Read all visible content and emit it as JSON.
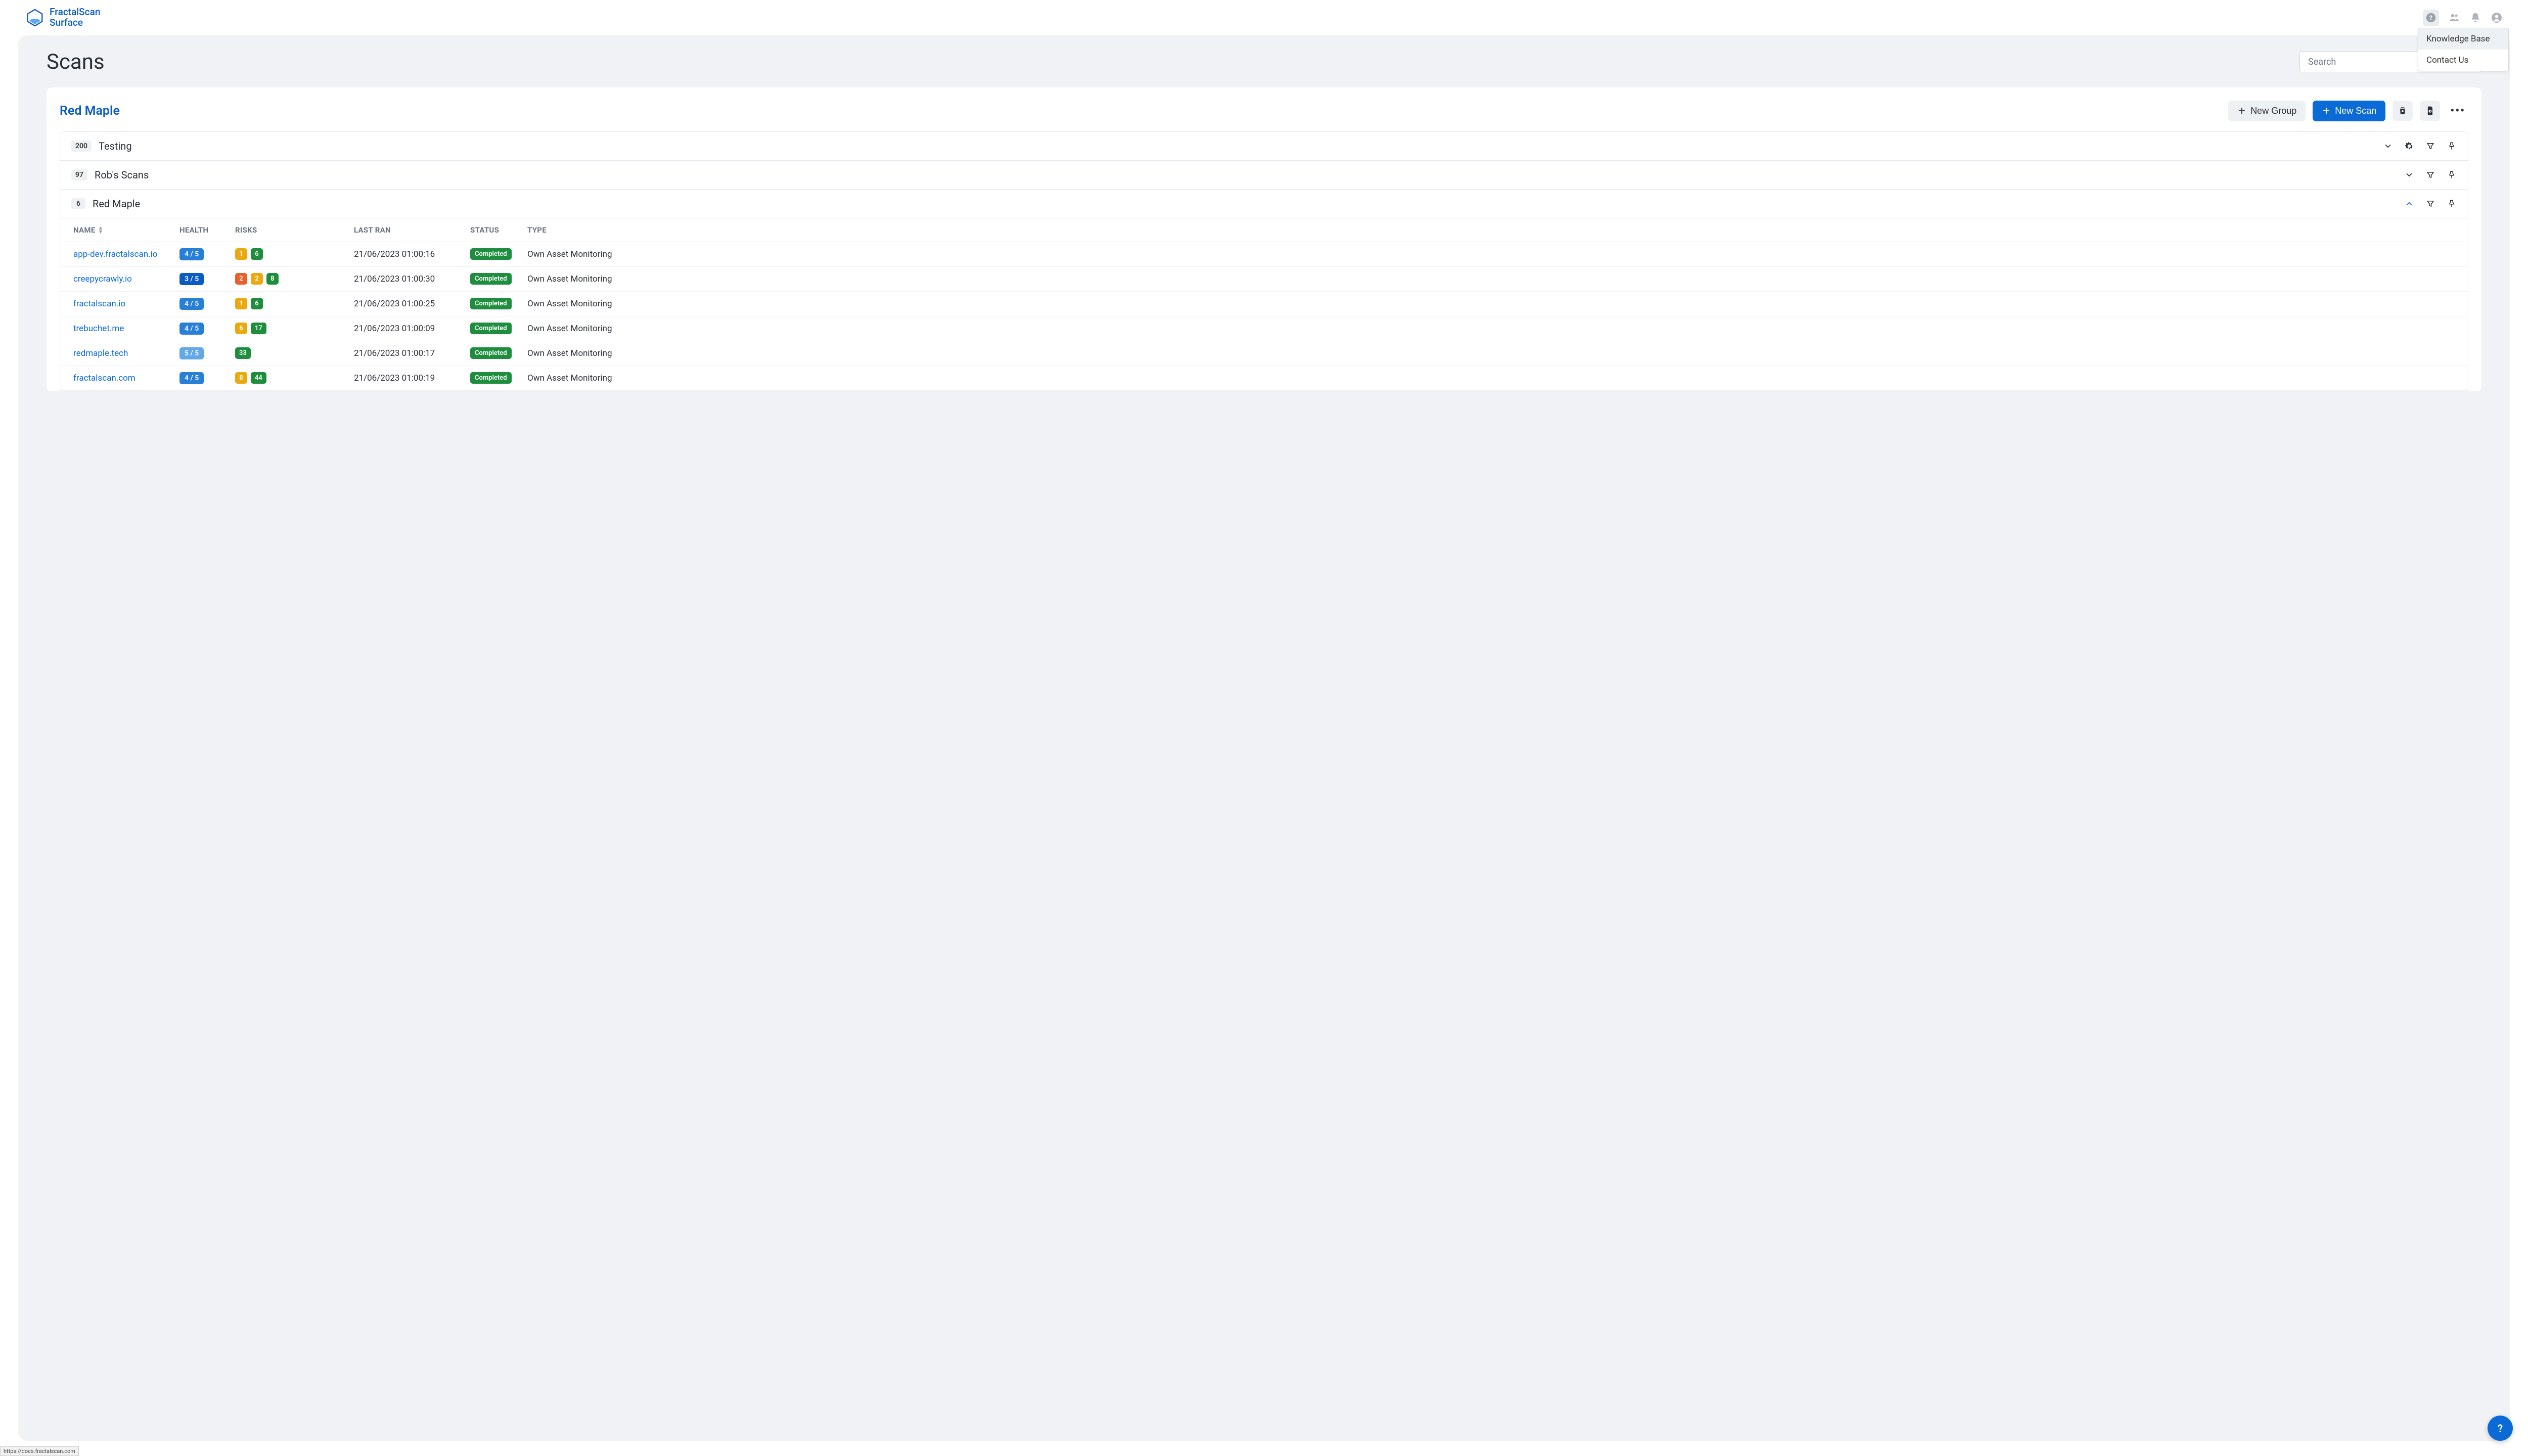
{
  "brand": {
    "line1": "FractalScan",
    "line2": "Surface"
  },
  "help_menu": {
    "knowledge_base": "Knowledge Base",
    "contact_us": "Contact Us"
  },
  "page": {
    "title": "Scans",
    "search_placeholder": "Search"
  },
  "card": {
    "org": "Red Maple",
    "new_group": "New Group",
    "new_scan": "New Scan"
  },
  "groups": [
    {
      "count": "200",
      "name": "Testing",
      "expanded": false,
      "has_gear": true
    },
    {
      "count": "97",
      "name": "Rob's Scans",
      "expanded": false,
      "has_gear": false
    },
    {
      "count": "6",
      "name": "Red Maple",
      "expanded": true,
      "has_gear": false
    }
  ],
  "table": {
    "headers": {
      "name": "NAME",
      "health": "HEALTH",
      "risks": "RISKS",
      "last": "LAST RAN",
      "status": "STATUS",
      "type": "TYPE"
    },
    "colors": {
      "health_blue": "#277fd6",
      "health_dark": "#0a5cc4",
      "health_light": "#62a7e6",
      "risk_orange": "#e8602c",
      "risk_yellow": "#eaa90f",
      "risk_green": "#1e8e3e",
      "status_green": "#1e8e3e"
    },
    "rows": [
      {
        "name": "app-dev.fractalscan.io",
        "health": {
          "text": "4 / 5",
          "bg": "health_blue"
        },
        "risks": [
          {
            "text": "1",
            "bg": "risk_yellow"
          },
          {
            "text": "6",
            "bg": "risk_green"
          }
        ],
        "last": "21/06/2023 01:00:16",
        "status": "Completed",
        "type": "Own Asset Monitoring"
      },
      {
        "name": "creepycrawly.io",
        "health": {
          "text": "3 / 5",
          "bg": "health_dark"
        },
        "risks": [
          {
            "text": "2",
            "bg": "risk_orange"
          },
          {
            "text": "2",
            "bg": "risk_yellow"
          },
          {
            "text": "8",
            "bg": "risk_green"
          }
        ],
        "last": "21/06/2023 01:00:30",
        "status": "Completed",
        "type": "Own Asset Monitoring"
      },
      {
        "name": "fractalscan.io",
        "health": {
          "text": "4 / 5",
          "bg": "health_blue"
        },
        "risks": [
          {
            "text": "1",
            "bg": "risk_yellow"
          },
          {
            "text": "6",
            "bg": "risk_green"
          }
        ],
        "last": "21/06/2023 01:00:25",
        "status": "Completed",
        "type": "Own Asset Monitoring"
      },
      {
        "name": "trebuchet.me",
        "health": {
          "text": "4 / 5",
          "bg": "health_blue"
        },
        "risks": [
          {
            "text": "6",
            "bg": "risk_yellow"
          },
          {
            "text": "17",
            "bg": "risk_green"
          }
        ],
        "last": "21/06/2023 01:00:09",
        "status": "Completed",
        "type": "Own Asset Monitoring"
      },
      {
        "name": "redmaple.tech",
        "health": {
          "text": "5 / 5",
          "bg": "health_light"
        },
        "risks": [
          {
            "text": "33",
            "bg": "risk_green"
          }
        ],
        "last": "21/06/2023 01:00:17",
        "status": "Completed",
        "type": "Own Asset Monitoring"
      },
      {
        "name": "fractalscan.com",
        "health": {
          "text": "4 / 5",
          "bg": "health_blue"
        },
        "risks": [
          {
            "text": "8",
            "bg": "risk_yellow"
          },
          {
            "text": "44",
            "bg": "risk_green"
          }
        ],
        "last": "21/06/2023 01:00:19",
        "status": "Completed",
        "type": "Own Asset Monitoring"
      }
    ]
  },
  "url_hint": "https://docs.fractalscan.com"
}
